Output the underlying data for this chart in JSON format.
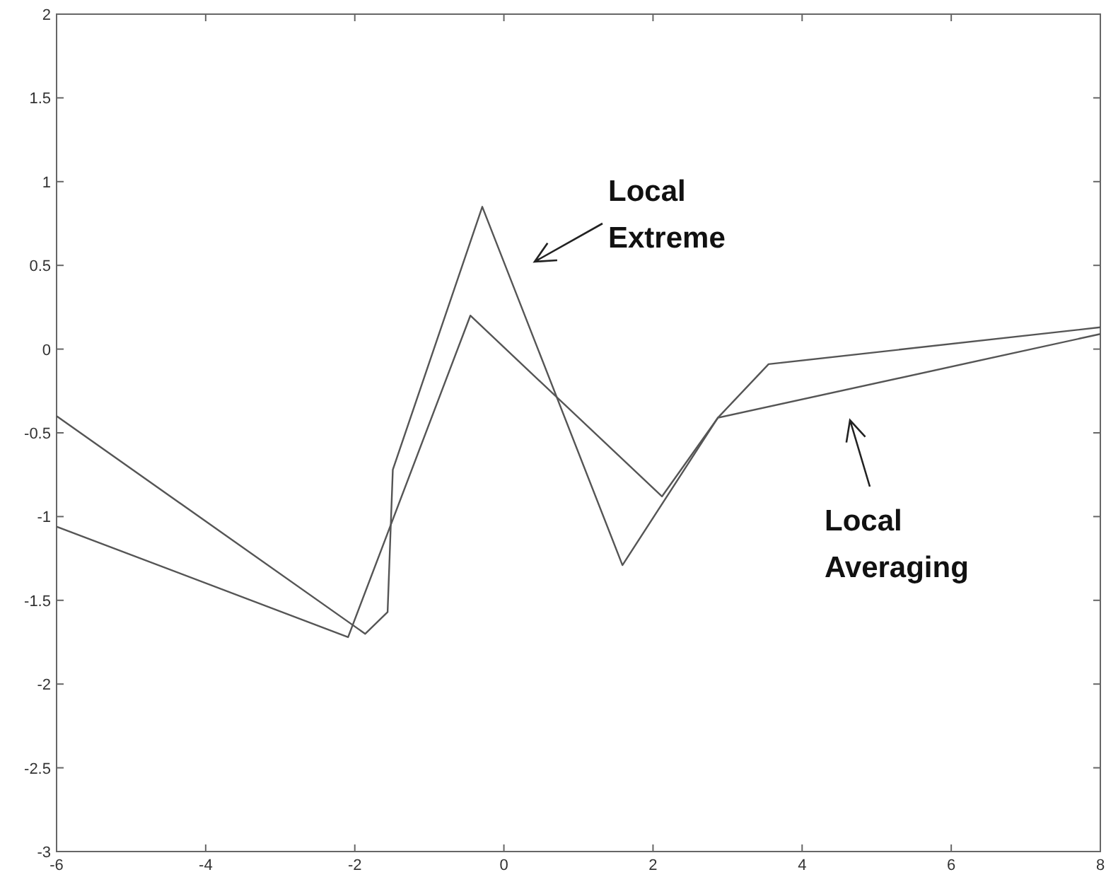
{
  "chart_data": {
    "type": "line",
    "xlim": [
      -6,
      8
    ],
    "ylim": [
      -3,
      2
    ],
    "xticks": [
      -6,
      -4,
      -2,
      0,
      2,
      4,
      6,
      8
    ],
    "yticks": [
      -3,
      -2.5,
      -2,
      -1.5,
      -1,
      -0.5,
      0,
      0.5,
      1,
      1.5,
      2
    ],
    "grid": false,
    "marker": "none",
    "line_style": "solid",
    "series": [
      {
        "color": "#555555",
        "x": [
          -6,
          -1.86,
          -1.56,
          -1.49,
          -0.29,
          1.59,
          2.87,
          3.55,
          8
        ],
        "values": [
          -0.4,
          -1.7,
          -1.57,
          -0.72,
          0.85,
          -1.29,
          -0.41,
          -0.09,
          0.13
        ]
      },
      {
        "color": "#555555",
        "x": [
          -6,
          -2.09,
          -0.45,
          2.12,
          2.87,
          8
        ],
        "values": [
          -1.06,
          -1.72,
          0.2,
          -0.88,
          -0.41,
          0.09
        ]
      }
    ],
    "annotations": [
      "Local\nExtreme",
      "Local\nAveraging"
    ]
  }
}
